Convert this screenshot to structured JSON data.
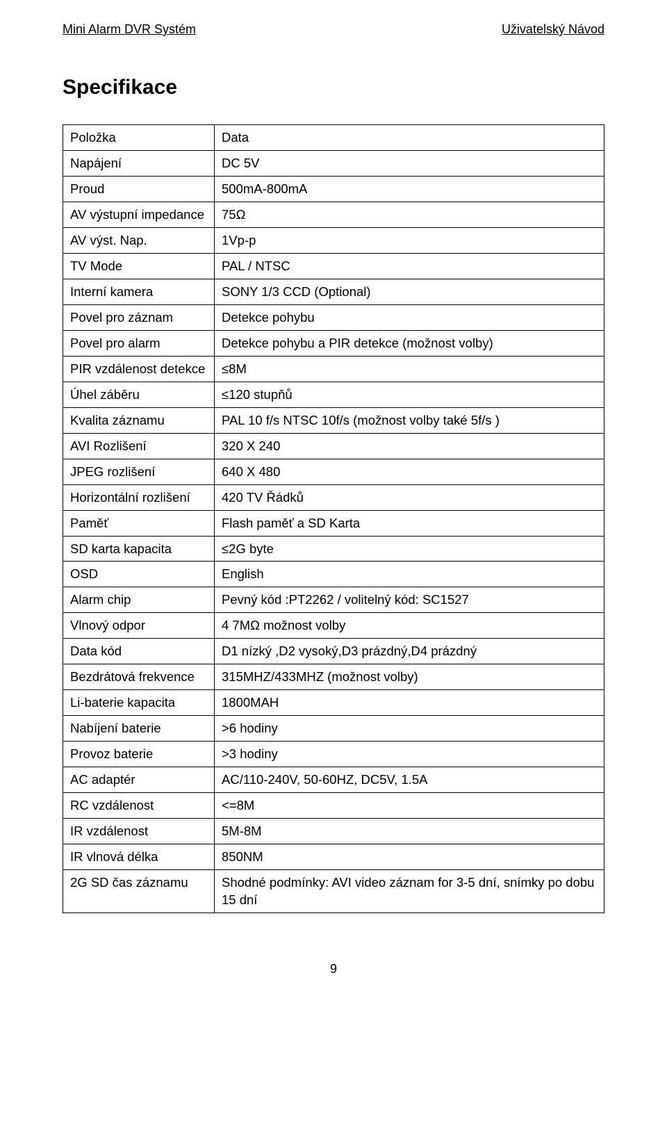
{
  "header": {
    "left": "Mini Alarm DVR Systém",
    "right": "Uživatelský Návod"
  },
  "title": "Specifikace",
  "table": {
    "rows": [
      {
        "c1": "Položka",
        "c2": "Data"
      },
      {
        "c1": "Napájení",
        "c2": "DC 5V"
      },
      {
        "c1": "Proud",
        "c2": "500mA-800mA"
      },
      {
        "c1": "AV výstupní impedance",
        "c2": "75Ω"
      },
      {
        "c1": "AV výst. Nap.",
        "c2": "1Vp-p"
      },
      {
        "c1": "TV Mode",
        "c2": "PAL / NTSC"
      },
      {
        "c1": "Interní kamera",
        "c2": "SONY   1/3 CCD    (Optional)"
      },
      {
        "c1": "Povel pro záznam",
        "c2": "Detekce pohybu"
      },
      {
        "c1": "Povel pro alarm",
        "c2": "Detekce pohybu a PIR detekce (možnost volby)"
      },
      {
        "c1": "PIR vzdálenost detekce",
        "c2": "≤8M"
      },
      {
        "c1": "Úhel záběru",
        "c2": "≤120 stupňů"
      },
      {
        "c1": "Kvalita záznamu",
        "c2": "PAL   10 f/s       NTSC   10f/s (možnost volby také 5f/s )"
      },
      {
        "c1": "AVI Rozlišení",
        "c2": "320 X 240"
      },
      {
        "c1": "JPEG rozlišení",
        "c2": "640 X 480"
      },
      {
        "c1": "Horizontální rozlišení",
        "c2": "420 TV    Řádků"
      },
      {
        "c1": "Paměť",
        "c2": "Flash paměť a SD Karta"
      },
      {
        "c1": "SD karta kapacita",
        "c2": "≤2G byte"
      },
      {
        "c1": "OSD",
        "c2": "English"
      },
      {
        "c1": "Alarm chip",
        "c2": "Pevný kód :PT2262      / volitelný kód: SC1527"
      },
      {
        "c1": "Vlnový odpor",
        "c2": "4  7MΩ   možnost volby"
      },
      {
        "c1": "Data kód",
        "c2": "D1 nízký ,D2 vysoký,D3 prázdný,D4 prázdný"
      },
      {
        "c1": "Bezdrátová frekvence",
        "c2": "315MHZ/433MHZ (možnost volby)"
      },
      {
        "c1": "Li-baterie kapacita",
        "c2": "1800MAH"
      },
      {
        "c1": "Nabíjení baterie",
        "c2": ">6 hodiny"
      },
      {
        "c1": "Provoz baterie",
        "c2": ">3 hodiny"
      },
      {
        "c1": "AC adaptér",
        "c2": "AC/110-240V, 50-60HZ, DC5V, 1.5A"
      },
      {
        "c1": "RC vzdálenost",
        "c2": "<=8M"
      },
      {
        "c1": "IR vzdálenost",
        "c2": "5M-8M"
      },
      {
        "c1": "IR vlnová délka",
        "c2": "850NM"
      },
      {
        "c1": "2G    SD    čas záznamu",
        "c2": "Shodné podmínky:  AVI  video  záznam  for   3-5   dní, snímky po dobu 15 dní"
      }
    ]
  },
  "footer": {
    "page": "9"
  }
}
